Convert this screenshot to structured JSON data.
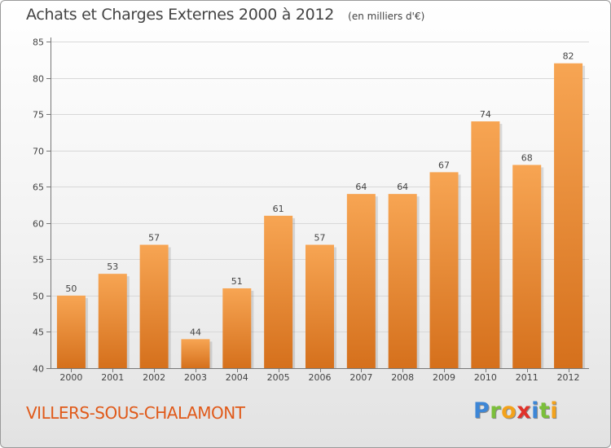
{
  "header": {
    "title": "Achats et Charges Externes 2000 à 2012",
    "subtitle": "(en milliers d'€)"
  },
  "footer": {
    "city": "VILLERS-SOUS-CHALAMONT",
    "brand": "Proxiti"
  },
  "colors": {
    "bar_light": "#f7a553",
    "bar_dark": "#d5701c",
    "city_text": "#e05a1a",
    "grid": "#d8d8d8"
  },
  "chart_data": {
    "type": "bar",
    "categories": [
      "2000",
      "2001",
      "2002",
      "2003",
      "2004",
      "2005",
      "2006",
      "2007",
      "2008",
      "2009",
      "2010",
      "2011",
      "2012"
    ],
    "values": [
      50,
      53,
      57,
      44,
      51,
      61,
      57,
      64,
      64,
      67,
      74,
      68,
      82
    ],
    "ylim": [
      40,
      85
    ],
    "yticks": [
      40,
      45,
      50,
      55,
      60,
      65,
      70,
      75,
      80,
      85
    ],
    "grid": true,
    "data_labels": true
  }
}
